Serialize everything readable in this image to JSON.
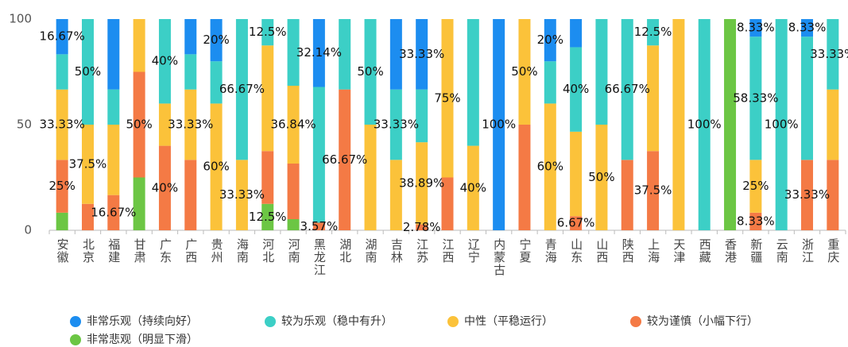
{
  "chart_data": {
    "type": "stacked_bar",
    "categories": [
      "安徽",
      "北京",
      "福建",
      "甘肃",
      "广东",
      "广西",
      "贵州",
      "海南",
      "河北",
      "河南",
      "黑龙江",
      "湖北",
      "湖南",
      "吉林",
      "江苏",
      "江西",
      "辽宁",
      "内蒙古",
      "宁夏",
      "青海",
      "山东",
      "山西",
      "陕西",
      "上海",
      "天津",
      "西藏",
      "香港",
      "新疆",
      "云南",
      "浙江",
      "重庆"
    ],
    "series": [
      {
        "name": "非常悲观（明显下滑）",
        "color": "#6cc644",
        "values": [
          8.33,
          0,
          0,
          25,
          0,
          0,
          0,
          0,
          12.5,
          5.26,
          0,
          0,
          0,
          0,
          0,
          0,
          0,
          0,
          0,
          0,
          0,
          0,
          0,
          0,
          0,
          0,
          100,
          0,
          0,
          0,
          0
        ],
        "value_labels": [
          null,
          null,
          null,
          null,
          null,
          null,
          null,
          null,
          "12.5%",
          null,
          null,
          null,
          null,
          null,
          null,
          null,
          null,
          null,
          null,
          null,
          null,
          null,
          null,
          null,
          null,
          null,
          null,
          null,
          null,
          null,
          null
        ]
      },
      {
        "name": "较为谨慎（小幅下行）",
        "color": "#f47a45",
        "values": [
          25,
          12.5,
          16.67,
          50,
          40,
          33.33,
          0,
          0,
          25,
          26.32,
          3.57,
          66.67,
          0,
          0,
          2.78,
          25,
          0,
          0,
          50,
          0,
          6.67,
          0,
          33.33,
          37.5,
          0,
          0,
          0,
          8.33,
          0,
          33.33,
          33.33
        ],
        "value_labels": [
          "25%",
          null,
          "16.67%",
          "50%",
          "40%",
          null,
          null,
          null,
          null,
          null,
          "3.57%",
          "66.67%",
          null,
          null,
          "2.78%",
          null,
          null,
          null,
          null,
          null,
          "6.67%",
          null,
          null,
          "37.5%",
          null,
          null,
          null,
          "8.33%",
          null,
          "33.33%",
          null
        ]
      },
      {
        "name": "中性（平稳运行）",
        "color": "#fbc23a",
        "values": [
          33.33,
          37.5,
          33.33,
          25,
          20,
          33.33,
          60,
          33.33,
          50,
          36.84,
          0,
          0,
          50,
          33.33,
          38.89,
          75,
          40,
          0,
          50,
          60,
          40,
          50,
          0,
          50,
          100,
          0,
          0,
          25,
          0,
          0,
          33.33
        ],
        "value_labels": [
          "33.33%",
          "37.5%",
          null,
          null,
          null,
          "33.33%",
          "60%",
          "33.33%",
          null,
          "36.84%",
          null,
          null,
          null,
          null,
          "38.89%",
          "75%",
          "40%",
          null,
          "50%",
          "60%",
          null,
          "50%",
          null,
          null,
          null,
          null,
          null,
          "25%",
          null,
          null,
          null
        ]
      },
      {
        "name": "较为乐观（稳中有升）",
        "color": "#3ccfc6",
        "values": [
          16.67,
          50,
          16.67,
          0,
          40,
          16.67,
          20,
          66.67,
          12.5,
          31.58,
          64.29,
          33.33,
          50,
          33.33,
          25,
          0,
          60,
          0,
          0,
          20,
          40,
          50,
          66.67,
          12.5,
          0,
          100,
          0,
          58.33,
          100,
          58.33,
          33.33
        ],
        "value_labels": [
          null,
          "50%",
          null,
          null,
          "40%",
          null,
          null,
          "66.67%",
          "12.5%",
          null,
          null,
          null,
          "50%",
          "33.33%",
          null,
          null,
          null,
          null,
          null,
          null,
          "40%",
          null,
          "66.67%",
          "12.5%",
          null,
          "100%",
          null,
          "58.33%",
          "100%",
          null,
          "33.33%"
        ]
      },
      {
        "name": "非常乐观（持续向好）",
        "color": "#1c8df0",
        "values": [
          16.67,
          0,
          33.33,
          0,
          0,
          16.67,
          20,
          0,
          0,
          0,
          32.14,
          0,
          0,
          33.33,
          33.33,
          0,
          0,
          100,
          0,
          20,
          13.33,
          0,
          0,
          0,
          0,
          0,
          0,
          8.33,
          0,
          8.33,
          0
        ],
        "value_labels": [
          "16.67%",
          null,
          null,
          null,
          null,
          null,
          "20%",
          null,
          null,
          null,
          "32.14%",
          null,
          null,
          null,
          "33.33%",
          null,
          null,
          "100%",
          null,
          "20%",
          null,
          null,
          null,
          null,
          null,
          null,
          null,
          "8.33%",
          null,
          "8.33%",
          null
        ]
      }
    ],
    "ylim": [
      0,
      100
    ],
    "yticks": [
      0,
      50,
      100
    ]
  }
}
